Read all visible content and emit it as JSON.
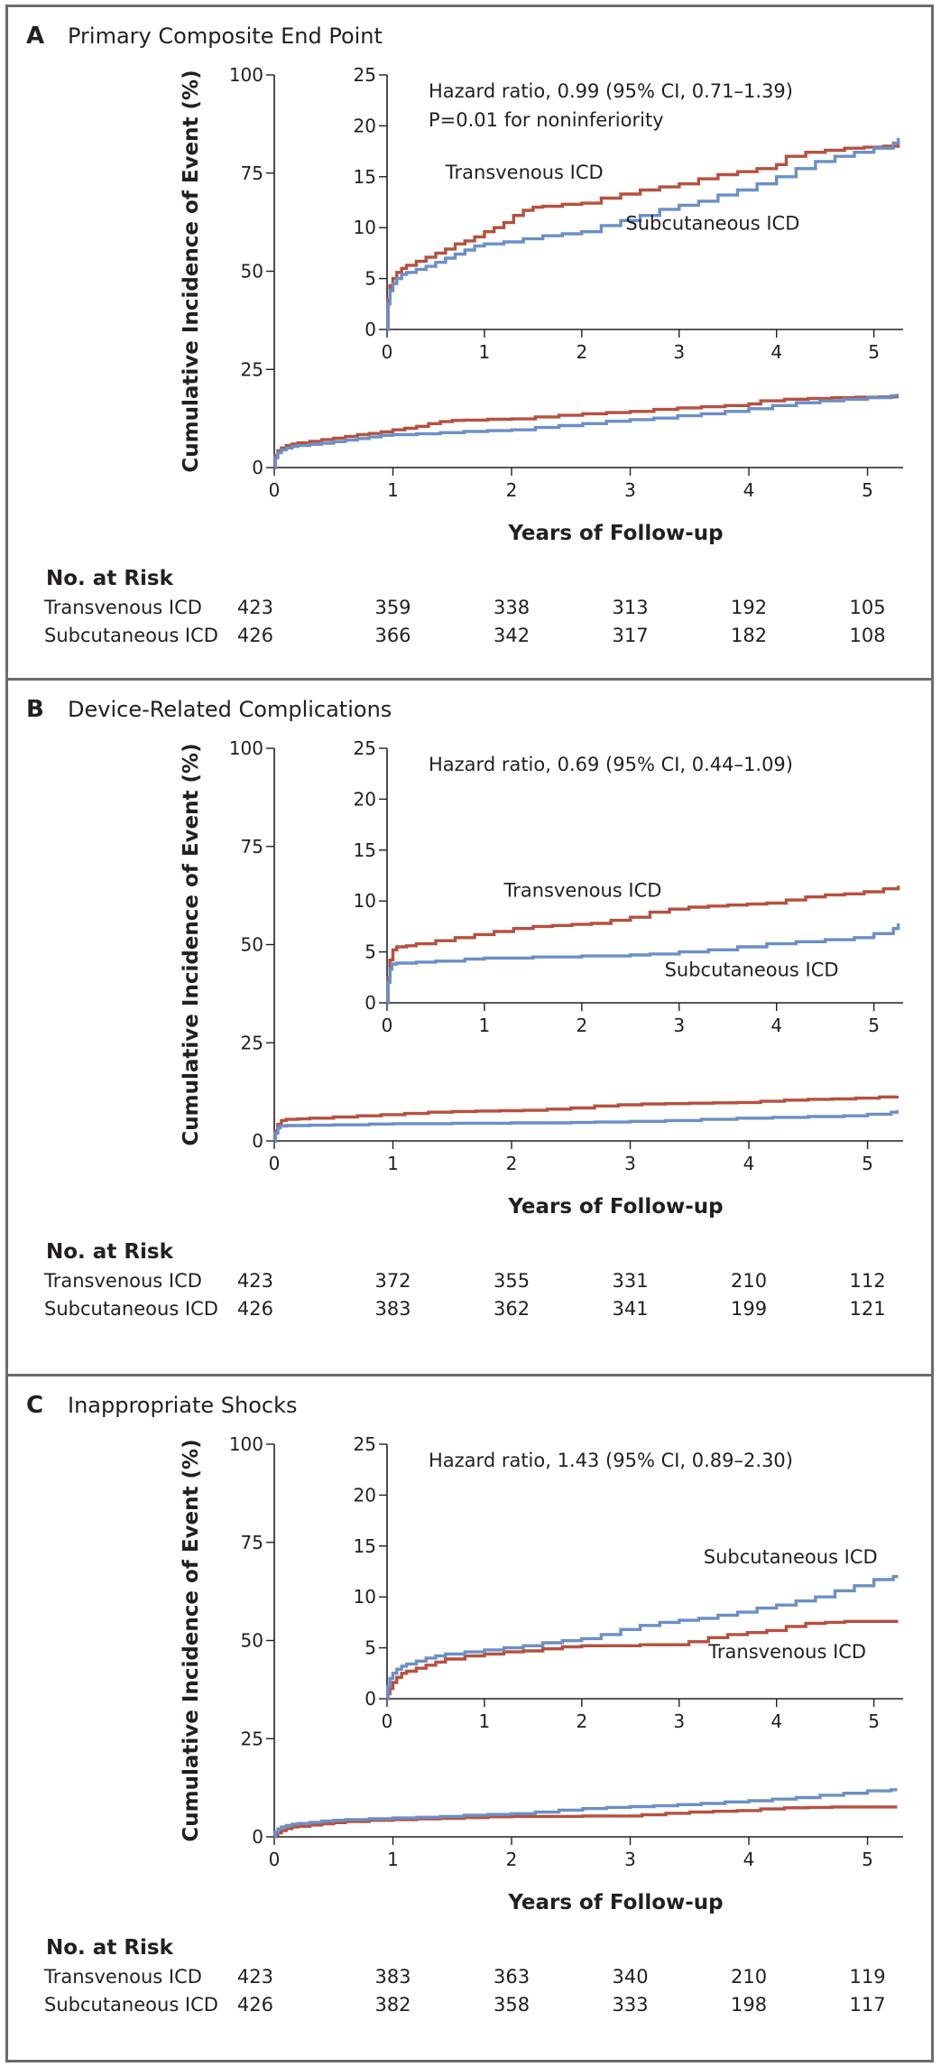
{
  "figure": {
    "colors": {
      "transvenous": "#b6503f",
      "subcutaneous": "#6b8fc7",
      "axis": "#231f20",
      "border": "#6b6b6b"
    },
    "panels": [
      {
        "letter": "A",
        "title": "Primary Composite End Point",
        "chart_data": {
          "type": "line",
          "title": "Primary Composite End Point",
          "xlabel": "Years of Follow-up",
          "ylabel": "Cumulative Incidence of Event (%)",
          "xlim": [
            0,
            5.3
          ],
          "ylim": [
            0,
            100
          ],
          "xticks": [
            0,
            1,
            2,
            3,
            4,
            5
          ],
          "yticks": [
            0,
            25,
            50,
            75,
            100
          ],
          "inset": {
            "ylim": [
              0,
              25
            ],
            "yticks": [
              0,
              5,
              10,
              15,
              20,
              25
            ],
            "xticks": [
              0,
              1,
              2,
              3,
              4,
              5
            ],
            "annotation_lines": [
              "Hazard ratio, 0.99 (95% CI, 0.71–1.39)",
              "P=0.01 for noninferiority"
            ],
            "labels": [
              {
                "series": "Transvenous ICD",
                "text": "Transvenous ICD",
                "x": 0.6,
                "y": 14.8
              },
              {
                "series": "Subcutaneous ICD",
                "text": "Subcutaneous ICD",
                "x": 2.45,
                "y": 9.8
              }
            ]
          },
          "series": [
            {
              "name": "Transvenous ICD",
              "color": "#b6503f",
              "x": [
                0,
                0.01,
                0.03,
                0.06,
                0.1,
                0.15,
                0.2,
                0.3,
                0.4,
                0.5,
                0.6,
                0.7,
                0.8,
                0.9,
                1.0,
                1.1,
                1.2,
                1.3,
                1.4,
                1.5,
                1.6,
                1.8,
                2.0,
                2.2,
                2.4,
                2.6,
                2.8,
                3.0,
                3.2,
                3.4,
                3.6,
                3.8,
                4.0,
                4.1,
                4.3,
                4.5,
                4.7,
                4.9,
                5.1,
                5.25
              ],
              "y": [
                0,
                3.0,
                4.3,
                5.0,
                5.6,
                6.0,
                6.3,
                6.7,
                7.1,
                7.5,
                7.9,
                8.4,
                8.7,
                9.1,
                9.6,
                10.0,
                10.5,
                11.2,
                11.7,
                12.0,
                12.1,
                12.3,
                12.4,
                12.9,
                13.3,
                13.7,
                14.0,
                14.3,
                14.8,
                15.2,
                15.5,
                15.8,
                16.2,
                17.0,
                17.4,
                17.6,
                17.8,
                17.9,
                18.0,
                18.5
              ]
            },
            {
              "name": "Subcutaneous ICD",
              "color": "#6b8fc7",
              "x": [
                0,
                0.01,
                0.03,
                0.06,
                0.1,
                0.15,
                0.2,
                0.3,
                0.4,
                0.5,
                0.6,
                0.7,
                0.8,
                0.9,
                1.0,
                1.2,
                1.4,
                1.6,
                1.8,
                2.0,
                2.2,
                2.4,
                2.6,
                2.8,
                3.0,
                3.2,
                3.4,
                3.6,
                3.8,
                4.0,
                4.2,
                4.4,
                4.6,
                4.8,
                5.0,
                5.2,
                5.25
              ],
              "y": [
                0,
                2.5,
                3.8,
                4.5,
                5.0,
                5.4,
                5.6,
                5.9,
                6.2,
                6.6,
                7.0,
                7.4,
                7.8,
                8.2,
                8.4,
                8.6,
                8.9,
                9.2,
                9.4,
                9.6,
                10.2,
                10.7,
                11.2,
                11.8,
                12.2,
                12.6,
                13.2,
                13.7,
                14.3,
                15.0,
                15.8,
                16.5,
                17.0,
                17.4,
                17.8,
                18.3,
                18.8
              ]
            }
          ]
        },
        "risk": {
          "header": "No. at Risk",
          "rows": [
            {
              "label": "Transvenous ICD",
              "values": [
                "423",
                "359",
                "338",
                "313",
                "192",
                "105"
              ]
            },
            {
              "label": "Subcutaneous ICD",
              "values": [
                "426",
                "366",
                "342",
                "317",
                "182",
                "108"
              ]
            }
          ]
        }
      },
      {
        "letter": "B",
        "title": "Device-Related Complications",
        "chart_data": {
          "type": "line",
          "title": "Device-Related Complications",
          "xlabel": "Years of Follow-up",
          "ylabel": "Cumulative Incidence of Event (%)",
          "xlim": [
            0,
            5.3
          ],
          "ylim": [
            0,
            100
          ],
          "xticks": [
            0,
            1,
            2,
            3,
            4,
            5
          ],
          "yticks": [
            0,
            25,
            50,
            75,
            100
          ],
          "inset": {
            "ylim": [
              0,
              25
            ],
            "yticks": [
              0,
              5,
              10,
              15,
              20,
              25
            ],
            "xticks": [
              0,
              1,
              2,
              3,
              4,
              5
            ],
            "annotation_lines": [
              "Hazard ratio, 0.69 (95% CI, 0.44–1.09)"
            ],
            "labels": [
              {
                "series": "Transvenous ICD",
                "text": "Transvenous ICD",
                "x": 1.2,
                "y": 10.4
              },
              {
                "series": "Subcutaneous ICD",
                "text": "Subcutaneous ICD",
                "x": 2.85,
                "y": 2.6
              }
            ]
          },
          "series": [
            {
              "name": "Transvenous ICD",
              "color": "#b6503f",
              "x": [
                0,
                0.01,
                0.03,
                0.06,
                0.1,
                0.2,
                0.3,
                0.5,
                0.7,
                0.9,
                1.1,
                1.3,
                1.5,
                1.7,
                1.9,
                2.1,
                2.3,
                2.5,
                2.7,
                2.9,
                3.1,
                3.3,
                3.5,
                3.7,
                3.9,
                4.1,
                4.3,
                4.5,
                4.7,
                4.9,
                5.1,
                5.25
              ],
              "y": [
                0,
                2.5,
                4.2,
                5.2,
                5.5,
                5.6,
                5.8,
                6.1,
                6.4,
                6.7,
                7.0,
                7.3,
                7.5,
                7.6,
                7.7,
                7.8,
                8.1,
                8.4,
                8.9,
                9.2,
                9.4,
                9.5,
                9.6,
                9.7,
                9.8,
                10.1,
                10.4,
                10.6,
                10.7,
                10.9,
                11.2,
                11.5
              ]
            },
            {
              "name": "Subcutaneous ICD",
              "color": "#6b8fc7",
              "x": [
                0,
                0.01,
                0.03,
                0.05,
                0.1,
                0.3,
                0.5,
                0.8,
                1.0,
                1.5,
                2.0,
                2.5,
                2.7,
                3.0,
                3.3,
                3.6,
                3.9,
                4.2,
                4.5,
                4.8,
                5.0,
                5.2,
                5.25
              ],
              "y": [
                0,
                2.0,
                3.3,
                3.8,
                3.9,
                4.0,
                4.1,
                4.3,
                4.4,
                4.5,
                4.6,
                4.7,
                4.8,
                5.0,
                5.2,
                5.5,
                5.8,
                6.0,
                6.2,
                6.4,
                6.8,
                7.3,
                7.8
              ]
            }
          ]
        },
        "risk": {
          "header": "No. at Risk",
          "rows": [
            {
              "label": "Transvenous ICD",
              "values": [
                "423",
                "372",
                "355",
                "331",
                "210",
                "112"
              ]
            },
            {
              "label": "Subcutaneous ICD",
              "values": [
                "426",
                "383",
                "362",
                "341",
                "199",
                "121"
              ]
            }
          ]
        }
      },
      {
        "letter": "C",
        "title": "Inappropriate Shocks",
        "chart_data": {
          "type": "line",
          "title": "Inappropriate Shocks",
          "xlabel": "Years of Follow-up",
          "ylabel": "Cumulative Incidence  of Event (%)",
          "xlim": [
            0,
            5.3
          ],
          "ylim": [
            0,
            100
          ],
          "xticks": [
            0,
            1,
            2,
            3,
            4,
            5
          ],
          "yticks": [
            0,
            25,
            50,
            75,
            100
          ],
          "inset": {
            "ylim": [
              0,
              25
            ],
            "yticks": [
              0,
              5,
              10,
              15,
              20,
              25
            ],
            "xticks": [
              0,
              1,
              2,
              3,
              4,
              5
            ],
            "annotation_lines": [
              "Hazard ratio, 1.43 (95% CI, 0.89–2.30)"
            ],
            "labels": [
              {
                "series": "Subcutaneous ICD",
                "text": "Subcutaneous ICD",
                "x": 3.25,
                "y": 13.3
              },
              {
                "series": "Transvenous ICD",
                "text": "Transvenous ICD",
                "x": 3.3,
                "y": 4.0
              }
            ]
          },
          "series": [
            {
              "name": "Transvenous ICD",
              "color": "#b6503f",
              "x": [
                0,
                0.01,
                0.03,
                0.06,
                0.1,
                0.15,
                0.2,
                0.3,
                0.4,
                0.5,
                0.6,
                0.8,
                1.0,
                1.2,
                1.4,
                1.6,
                1.8,
                2.0,
                2.3,
                2.6,
                2.9,
                3.1,
                3.3,
                3.5,
                3.7,
                3.9,
                4.1,
                4.3,
                4.5,
                4.7,
                4.9,
                5.1,
                5.25
              ],
              "y": [
                0,
                0.5,
                1.0,
                1.6,
                2.1,
                2.5,
                2.7,
                3.0,
                3.3,
                3.6,
                3.9,
                4.2,
                4.4,
                4.6,
                4.7,
                4.9,
                5.1,
                5.2,
                5.2,
                5.3,
                5.3,
                5.6,
                6.0,
                6.3,
                6.5,
                6.7,
                7.1,
                7.4,
                7.5,
                7.6,
                7.6,
                7.6,
                7.6
              ]
            },
            {
              "name": "Subcutaneous ICD",
              "color": "#6b8fc7",
              "x": [
                0,
                0.01,
                0.03,
                0.06,
                0.1,
                0.15,
                0.2,
                0.3,
                0.4,
                0.5,
                0.6,
                0.8,
                1.0,
                1.2,
                1.4,
                1.6,
                1.8,
                2.0,
                2.2,
                2.4,
                2.6,
                2.8,
                3.0,
                3.2,
                3.4,
                3.6,
                3.8,
                4.0,
                4.2,
                4.4,
                4.6,
                4.8,
                5.0,
                5.2,
                5.25
              ],
              "y": [
                0,
                1.2,
                2.0,
                2.5,
                2.9,
                3.2,
                3.4,
                3.7,
                4.0,
                4.2,
                4.4,
                4.6,
                4.8,
                5.0,
                5.2,
                5.5,
                5.7,
                5.9,
                6.3,
                6.8,
                7.2,
                7.5,
                7.7,
                7.9,
                8.2,
                8.5,
                8.9,
                9.2,
                9.6,
                10.0,
                10.6,
                11.1,
                11.7,
                12.0,
                12.0
              ]
            }
          ]
        },
        "risk": {
          "header": "No. at Risk",
          "rows": [
            {
              "label": "Transvenous ICD",
              "values": [
                "423",
                "383",
                "363",
                "340",
                "210",
                "119"
              ]
            },
            {
              "label": "Subcutaneous ICD",
              "values": [
                "426",
                "382",
                "358",
                "333",
                "198",
                "117"
              ]
            }
          ]
        }
      }
    ]
  }
}
